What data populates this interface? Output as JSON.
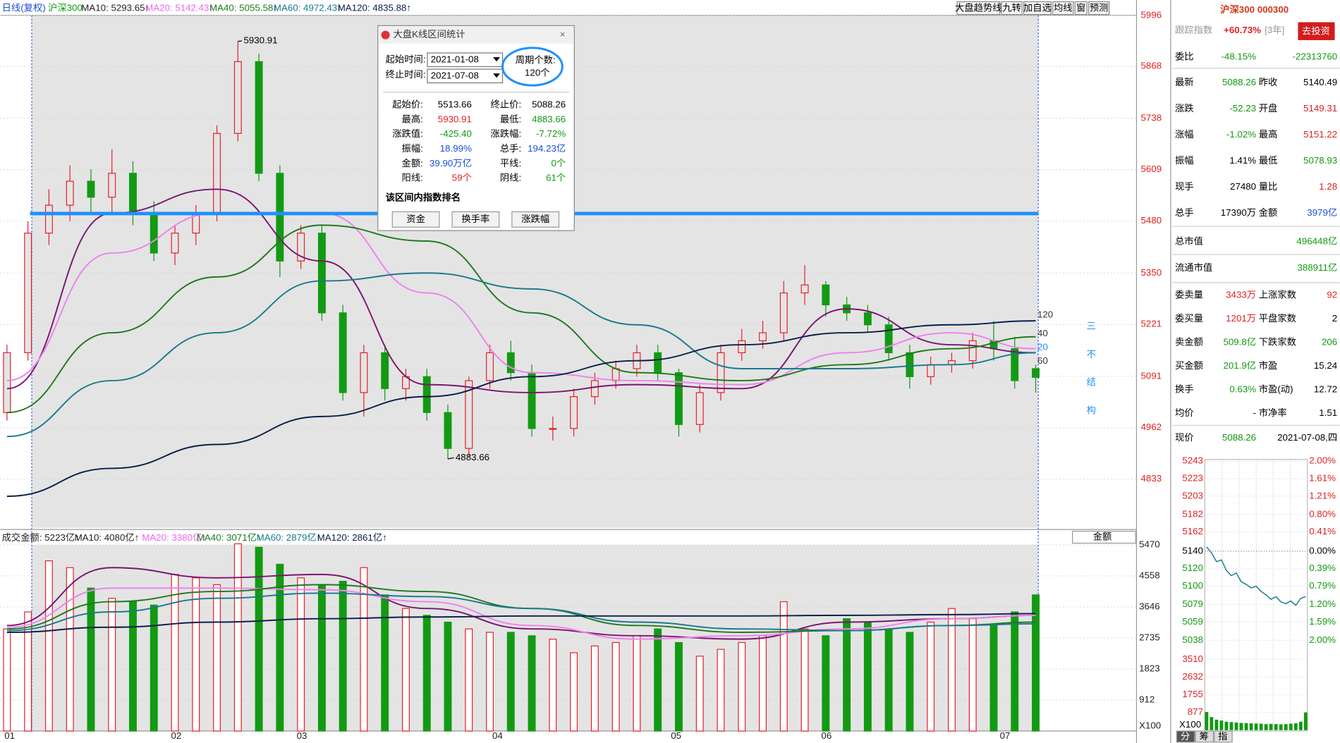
{
  "top_bar": {
    "items": [
      "日线(复权)",
      "沪深300",
      "MA10: 5293.65↑",
      "MA20: 5142.43↑",
      "MA40: 5055.58↑",
      "MA60: 4972.43↑",
      "MA120: 4835.88↑"
    ],
    "buttons": [
      "大盘趋势线",
      "九转",
      "加自选",
      "均线",
      "窗",
      "预测"
    ]
  },
  "chart_data": [
    {
      "type": "candlestick",
      "colors": {
        "up": "#e8202a",
        "down": "#139a13"
      },
      "open": [
        5000,
        5150,
        5450,
        5520,
        5580,
        5540,
        5600,
        5500,
        5400,
        5450,
        5500,
        5700,
        5880,
        5600,
        5380,
        5450,
        5250,
        5050,
        5150,
        5060,
        5090,
        5000,
        4910,
        5080,
        5150,
        5100,
        4960,
        4960,
        5040,
        5080,
        5110,
        5150,
        5100,
        4970,
        5050,
        5150,
        5180,
        5200,
        5300,
        5320,
        5270,
        5250,
        5220,
        5150,
        5090,
        5120,
        5130,
        5180,
        5160,
        5110
      ],
      "high": [
        5170,
        5480,
        5560,
        5620,
        5610,
        5660,
        5630,
        5530,
        5470,
        5520,
        5720,
        5930.91,
        5900,
        5620,
        5470,
        5470,
        5270,
        5170,
        5170,
        5110,
        5110,
        5020,
        5090,
        5170,
        5180,
        5120,
        4990,
        5060,
        5100,
        5130,
        5170,
        5170,
        5110,
        5070,
        5170,
        5210,
        5230,
        5330,
        5370,
        5330,
        5290,
        5270,
        5240,
        5170,
        5140,
        5150,
        5200,
        5230,
        5190,
        5120
      ],
      "low": [
        4980,
        5130,
        5420,
        5480,
        5500,
        5500,
        5470,
        5380,
        5370,
        5420,
        5480,
        5680,
        5580,
        5340,
        5360,
        5230,
        5030,
        4990,
        5030,
        5030,
        4980,
        4883.66,
        4890,
        5060,
        5080,
        4940,
        4930,
        4940,
        5020,
        5060,
        5090,
        5080,
        4940,
        4950,
        5030,
        5130,
        5160,
        5180,
        5270,
        5240,
        5230,
        5200,
        5130,
        5060,
        5070,
        5100,
        5110,
        5130,
        5060,
        5050
      ],
      "close": [
        5150,
        5450,
        5520,
        5580,
        5540,
        5600,
        5500,
        5400,
        5450,
        5500,
        5700,
        5880,
        5600,
        5380,
        5450,
        5250,
        5050,
        5150,
        5060,
        5090,
        5000,
        4910,
        5080,
        5150,
        5100,
        4960,
        4960,
        5040,
        5080,
        5110,
        5150,
        5100,
        4970,
        5050,
        5150,
        5180,
        5200,
        5300,
        5320,
        5270,
        5250,
        5220,
        5150,
        5090,
        5120,
        5130,
        5180,
        5160,
        5080,
        5088.26
      ],
      "ylim": [
        4711,
        5996
      ],
      "yticks": [
        5996,
        5868,
        5738,
        5609,
        5480,
        5350,
        5221,
        5091,
        4962,
        4833
      ],
      "x_labels": [
        "01",
        "02",
        "03",
        "04",
        "05",
        "06",
        "07"
      ],
      "ma_x": [
        0,
        5,
        10,
        15,
        20,
        25,
        30,
        35,
        40,
        45,
        49
      ],
      "series": [
        {
          "color": "#7a1670",
          "values": [
            5060,
            5500,
            5560,
            5380,
            5070,
            5050,
            5070,
            5060,
            5260,
            5170,
            5150
          ]
        },
        {
          "color": "#ee82ee",
          "values": [
            5080,
            5400,
            5500,
            5500,
            5300,
            5100,
            5080,
            5070,
            5150,
            5200,
            5160
          ]
        },
        {
          "color": "#1f7a1f",
          "values": [
            5000,
            5200,
            5340,
            5470,
            5430,
            5250,
            5100,
            5080,
            5120,
            5160,
            5190
          ]
        },
        {
          "color": "#1a7a8c",
          "values": [
            4940,
            5080,
            5200,
            5330,
            5350,
            5310,
            5220,
            5110,
            5110,
            5120,
            5150
          ]
        },
        {
          "color": "#0c1f4a",
          "values": [
            4790,
            4860,
            4920,
            4990,
            5040,
            5090,
            5130,
            5170,
            5200,
            5220,
            5230
          ]
        }
      ],
      "line_labels": [
        "120",
        "40",
        "20",
        "60"
      ],
      "annotation": "三不结构",
      "hline": 5499
    },
    {
      "type": "bar",
      "legend": [
        "成交金额: 5223亿↑",
        "MA10: 4080亿↑",
        "MA20: 3380亿↑",
        "MA40: 3071亿↑",
        "MA60: 2879亿↑",
        "MA120: 2861亿↑"
      ],
      "values": [
        3000,
        3500,
        5000,
        4800,
        4200,
        3900,
        3800,
        3700,
        4600,
        4500,
        4300,
        5500,
        5400,
        4900,
        4500,
        4300,
        4400,
        4800,
        4000,
        3600,
        3400,
        3200,
        3000,
        2900,
        2900,
        2800,
        2700,
        2300,
        2500,
        2600,
        2800,
        3000,
        2600,
        2200,
        2400,
        2600,
        2800,
        3800,
        3000,
        2800,
        3300,
        3200,
        3000,
        2900,
        3200,
        3600,
        3300,
        3100,
        3500,
        4000
      ],
      "ylim": [
        0,
        5720
      ],
      "yticks": [
        5470,
        4558,
        3646,
        2735,
        1823,
        912
      ],
      "dropdown": "金额",
      "scale_label": "X100",
      "series": [
        {
          "color": "#7a1670",
          "values": [
            3100,
            4800,
            4500,
            4600,
            3600,
            3000,
            2800,
            2700,
            3200,
            3300,
            3400
          ]
        },
        {
          "color": "#ee82ee",
          "values": [
            3050,
            4200,
            4200,
            4150,
            3800,
            3100,
            2700,
            2800,
            3000,
            3300,
            3400
          ]
        },
        {
          "color": "#1f7a1f",
          "values": [
            3000,
            3800,
            4100,
            4300,
            4100,
            3600,
            3100,
            2900,
            2950,
            3100,
            3200
          ]
        },
        {
          "color": "#1a7a8c",
          "values": [
            2950,
            3500,
            3900,
            4050,
            3950,
            3600,
            3200,
            3000,
            2950,
            3100,
            3150
          ]
        },
        {
          "color": "#0c1f4a",
          "values": [
            2900,
            3050,
            3200,
            3300,
            3350,
            3380,
            3380,
            3380,
            3400,
            3420,
            3450
          ]
        }
      ]
    }
  ],
  "dialog": {
    "title": "大盘K线区间统计",
    "start_label": "起始时间:",
    "start": "2021-01-08",
    "end_label": "终止时间:",
    "end": "2021-07-08",
    "count_label": "周期个数:",
    "count": "120个",
    "rows": [
      [
        "起始价:",
        "5513.66",
        "终止价:",
        "5088.26"
      ],
      [
        "最高:",
        "5930.91",
        "最低:",
        "4883.66"
      ],
      [
        "涨跌值:",
        "-425.40",
        "涨跌幅:",
        "-7.72%"
      ],
      [
        "振幅:",
        "18.99%",
        "总手:",
        "194.23亿"
      ],
      [
        "金额:",
        "39.90万亿",
        "平线:",
        "0个"
      ],
      [
        "阳线:",
        "59个",
        "阴线:",
        "61个"
      ]
    ],
    "section": "该区间内指数排名",
    "buttons": [
      "资金",
      "换手率",
      "涨跌幅"
    ]
  },
  "quote_panel": {
    "title": "沪深300 000300",
    "track_label": "跟踪指数",
    "track_value": "+60.73%",
    "track_period": "[3年]",
    "invest": "去投资",
    "ratio": [
      "委比",
      "-48.15%",
      "-22313760"
    ],
    "rows": [
      [
        "最新",
        "5088.26",
        "昨收",
        "5140.49"
      ],
      [
        "涨跌",
        "-52.23",
        "开盘",
        "5149.31"
      ],
      [
        "涨幅",
        "-1.02%",
        "最高",
        "5151.22"
      ],
      [
        "振幅",
        "1.41%",
        "最低",
        "5078.93"
      ],
      [
        "现手",
        "27480",
        "量比",
        "1.28"
      ],
      [
        "总手",
        "17390万",
        "金额",
        "3979亿"
      ]
    ],
    "caps": [
      [
        "总市值",
        "496448亿"
      ],
      [
        "流通市值",
        "388911亿"
      ]
    ],
    "rows2": [
      [
        "委卖量",
        "3433万",
        "上涨家数",
        "92"
      ],
      [
        "委买量",
        "1201万",
        "平盘家数",
        "2"
      ],
      [
        "卖金额",
        "509.8亿",
        "下跌家数",
        "206"
      ],
      [
        "买金额",
        "201.9亿",
        "市盈",
        "15.24"
      ],
      [
        "换手",
        "0.63%",
        "市盈(动)",
        "12.72"
      ],
      [
        "均价",
        "-",
        "市净率",
        "1.51"
      ]
    ],
    "price_row": [
      "现价",
      "5088.26",
      "2021-07-08,四"
    ]
  },
  "intraday": {
    "ylim": [
      5028,
      5243
    ],
    "yticks": [
      5243,
      5223,
      5203,
      5182,
      5162,
      5140,
      5120,
      5100,
      5079,
      5059,
      5038
    ],
    "right_labels": [
      "2.00%",
      "1.61%",
      "1.21%",
      "0.80%",
      "0.41%",
      "0.00%",
      "0.39%",
      "0.79%",
      "1.20%",
      "1.59%",
      "2.00%"
    ],
    "price": [
      5145,
      5138,
      5128,
      5130,
      5118,
      5112,
      5115,
      5105,
      5102,
      5098,
      5100,
      5094,
      5090,
      5085,
      5088,
      5082,
      5080,
      5083,
      5078,
      5086,
      5088
    ],
    "vol_ylim": [
      0,
      3510
    ],
    "vol_ticks": [
      3510,
      2632,
      1755,
      877
    ],
    "volume": [
      900,
      650,
      520,
      480,
      420,
      400,
      380,
      360,
      350,
      340,
      330,
      320,
      300,
      310,
      300,
      290,
      300,
      320,
      340,
      420,
      880
    ],
    "scale_label": "X100",
    "tabs": [
      "分",
      "筹",
      "指"
    ]
  }
}
